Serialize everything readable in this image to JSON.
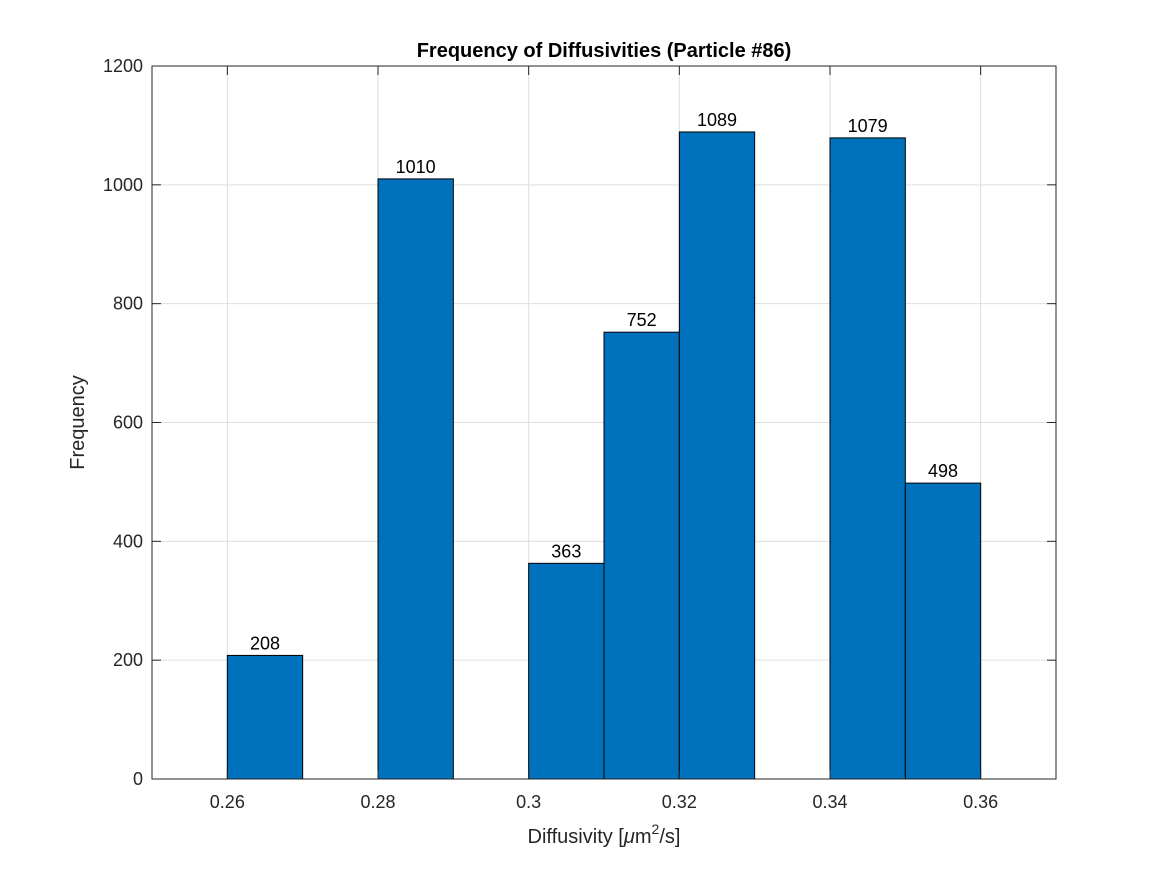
{
  "chart_data": {
    "type": "bar",
    "title": "Frequency of Diffusivities (Particle #86)",
    "xlabel": {
      "prefix": "Diffusivity [",
      "mu": "μ",
      "unit": "m",
      "sup": "2",
      "suffix": "/s]"
    },
    "ylabel": "Frequency",
    "x_centers": [
      0.265,
      0.285,
      0.305,
      0.315,
      0.325,
      0.345,
      0.355
    ],
    "bar_width": 0.01,
    "values": [
      208,
      1010,
      363,
      752,
      1089,
      1079,
      498
    ],
    "data_labels": [
      "208",
      "1010",
      "363",
      "752",
      "1089",
      "1079",
      "498"
    ],
    "xlim": [
      0.25,
      0.37
    ],
    "ylim": [
      0,
      1200
    ],
    "xticks": [
      0.26,
      0.28,
      0.3,
      0.32,
      0.34,
      0.36
    ],
    "xtick_labels": [
      "0.26",
      "0.28",
      "0.3",
      "0.32",
      "0.34",
      "0.36"
    ],
    "yticks": [
      0,
      200,
      400,
      600,
      800,
      1000,
      1200
    ],
    "ytick_labels": [
      "0",
      "200",
      "400",
      "600",
      "800",
      "1000",
      "1200"
    ],
    "grid": true,
    "bar_color": "#0072BD",
    "edge_color": "#000000"
  }
}
